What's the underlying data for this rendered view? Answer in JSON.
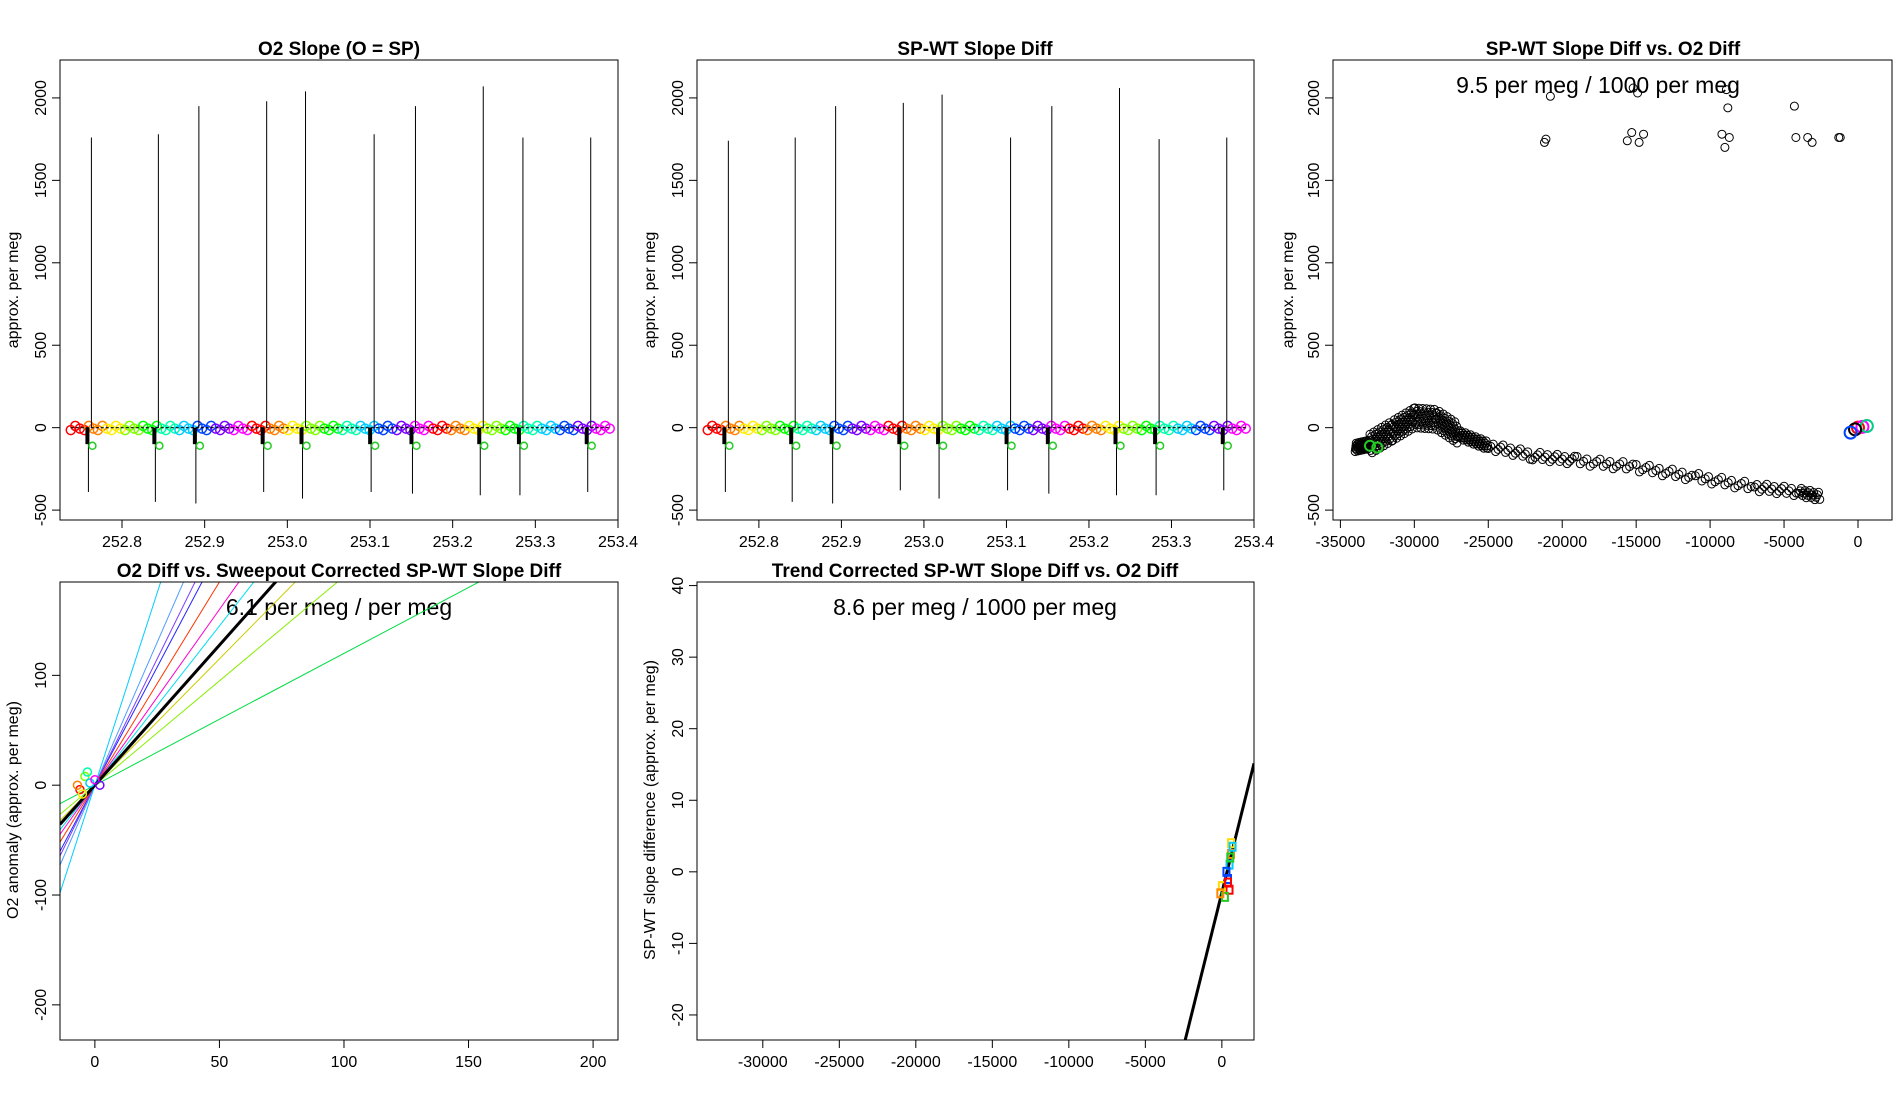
{
  "chart_data": [
    {
      "id": "p1",
      "type": "line",
      "title": "O2 Slope (O = SP)",
      "xlabel": "",
      "ylabel": "approx. per meg",
      "xlim": [
        252.725,
        253.4
      ],
      "ylim": [
        -560,
        2230
      ],
      "xticks": [
        252.8,
        252.9,
        253.0,
        253.1,
        253.2,
        253.3,
        253.4
      ],
      "xtick_labels": [
        "252.8",
        "252.9",
        "253.0",
        "253.1",
        "253.2",
        "253.3",
        "253.4"
      ],
      "yticks": [
        -500,
        0,
        500,
        1000,
        1500,
        2000
      ],
      "ytick_labels": [
        "-500",
        "0",
        "500",
        "1000",
        "1500",
        "2000"
      ],
      "x_range": [
        252.738,
        253.39
      ],
      "baseline": 0,
      "markers": "rainbow circles along baseline",
      "spikes": [
        {
          "x": 252.763,
          "peak": 1760,
          "trough": -390
        },
        {
          "x": 252.844,
          "peak": 1780,
          "trough": -450
        },
        {
          "x": 252.893,
          "peak": 1950,
          "trough": -460
        },
        {
          "x": 252.975,
          "peak": 1980,
          "trough": -390
        },
        {
          "x": 253.022,
          "peak": 2040,
          "trough": -430
        },
        {
          "x": 253.105,
          "peak": 1780,
          "trough": -390
        },
        {
          "x": 253.155,
          "peak": 1950,
          "trough": -400
        },
        {
          "x": 253.237,
          "peak": 2070,
          "trough": -410
        },
        {
          "x": 253.285,
          "peak": 1760,
          "trough": -410
        },
        {
          "x": 253.367,
          "peak": 1760,
          "trough": -390
        }
      ]
    },
    {
      "id": "p2",
      "type": "line",
      "title": "SP-WT Slope Diff",
      "xlabel": "",
      "ylabel": "approx. per meg",
      "xlim": [
        252.725,
        253.4
      ],
      "ylim": [
        -560,
        2230
      ],
      "xticks": [
        252.8,
        252.9,
        253.0,
        253.1,
        253.2,
        253.3,
        253.4
      ],
      "xtick_labels": [
        "252.8",
        "252.9",
        "253.0",
        "253.1",
        "253.2",
        "253.3",
        "253.4"
      ],
      "yticks": [
        -500,
        0,
        500,
        1000,
        1500,
        2000
      ],
      "ytick_labels": [
        "-500",
        "0",
        "500",
        "1000",
        "1500",
        "2000"
      ],
      "x_range": [
        252.738,
        253.39
      ],
      "baseline": 0,
      "markers": "rainbow circles along baseline",
      "spikes": [
        {
          "x": 252.763,
          "peak": 1740,
          "trough": -390
        },
        {
          "x": 252.844,
          "peak": 1760,
          "trough": -450
        },
        {
          "x": 252.893,
          "peak": 1950,
          "trough": -460
        },
        {
          "x": 252.975,
          "peak": 1970,
          "trough": -380
        },
        {
          "x": 253.022,
          "peak": 2020,
          "trough": -430
        },
        {
          "x": 253.105,
          "peak": 1760,
          "trough": -380
        },
        {
          "x": 253.155,
          "peak": 1950,
          "trough": -400
        },
        {
          "x": 253.237,
          "peak": 2060,
          "trough": -410
        },
        {
          "x": 253.285,
          "peak": 1750,
          "trough": -410
        },
        {
          "x": 253.367,
          "peak": 1760,
          "trough": -380
        }
      ]
    },
    {
      "id": "p3",
      "type": "scatter",
      "title": "SP-WT Slope Diff vs. O2 Diff",
      "xlabel": "",
      "ylabel": "approx. per meg",
      "annotation": "9.5 per meg / 1000 per meg",
      "xlim": [
        -35500,
        2300
      ],
      "ylim": [
        -560,
        2230
      ],
      "xticks": [
        -35000,
        -30000,
        -25000,
        -20000,
        -15000,
        -10000,
        -5000,
        0
      ],
      "xtick_labels": [
        "-35000",
        "-30000",
        "-25000",
        "-20000",
        "-15000",
        "-10000",
        "-5000",
        "0"
      ],
      "yticks": [
        -500,
        0,
        500,
        1000,
        1500,
        2000
      ],
      "ytick_labels": [
        "-500",
        "0",
        "500",
        "1000",
        "1500",
        "2000"
      ],
      "upper_points": [
        [
          -21200,
          1730
        ],
        [
          -21100,
          1750
        ],
        [
          -15600,
          1740
        ],
        [
          -15300,
          1790
        ],
        [
          -15200,
          2060
        ],
        [
          -14900,
          2030
        ],
        [
          -14800,
          1730
        ],
        [
          -14500,
          1780
        ],
        [
          -9200,
          1780
        ],
        [
          -9000,
          1700
        ],
        [
          -8900,
          2050
        ],
        [
          -8700,
          1760
        ],
        [
          -8800,
          1940
        ],
        [
          -4200,
          1760
        ],
        [
          -4300,
          1950
        ],
        [
          -3400,
          1760
        ],
        [
          -3100,
          1730
        ],
        [
          -1300,
          1760
        ],
        [
          -1200,
          1760
        ],
        [
          -20800,
          2010
        ]
      ],
      "main_curve": [
        [
          -34000,
          -120
        ],
        [
          -33000,
          -100
        ],
        [
          -31500,
          -20
        ],
        [
          -30000,
          60
        ],
        [
          -28500,
          50
        ],
        [
          -27000,
          -40
        ],
        [
          -25000,
          -110
        ],
        [
          -22000,
          -170
        ],
        [
          -19000,
          -200
        ],
        [
          -15000,
          -240
        ],
        [
          -11000,
          -300
        ],
        [
          -7000,
          -360
        ],
        [
          -4000,
          -390
        ],
        [
          -2500,
          -420
        ]
      ],
      "cluster_near_zero": [
        [
          0,
          0
        ],
        [
          300,
          5
        ],
        [
          600,
          10
        ],
        [
          -200,
          -10
        ],
        [
          -500,
          -30
        ]
      ]
    },
    {
      "id": "p4",
      "type": "line",
      "title": "O2 Diff vs. Sweepout Corrected SP-WT Slope Diff",
      "xlabel": "",
      "ylabel": "O2 anomaly (approx. per meg)",
      "annotation": "6.1 per meg / per meg",
      "xlim": [
        -14,
        210
      ],
      "ylim": [
        -232,
        185
      ],
      "xticks": [
        0,
        50,
        100,
        150,
        200
      ],
      "xtick_labels": [
        "0",
        "50",
        "100",
        "150",
        "200"
      ],
      "yticks": [
        -200,
        -100,
        0,
        100
      ],
      "ytick_labels": [
        "-200",
        "-100",
        "0",
        "100"
      ],
      "series": [
        {
          "name": "overall fit",
          "slope": 2.55,
          "intercept": 0,
          "color": "#000000"
        },
        {
          "name": "fit 1",
          "slope": 5.2,
          "intercept": 0,
          "color": "#4f9dff"
        },
        {
          "name": "fit 2",
          "slope": 4.3,
          "intercept": 0,
          "color": "#2222ff"
        },
        {
          "name": "fit 3",
          "slope": 4.6,
          "intercept": 0,
          "color": "#7a3dff"
        },
        {
          "name": "fit 4",
          "slope": 3.7,
          "intercept": 0,
          "color": "#ff3300"
        },
        {
          "name": "fit 5",
          "slope": 3.2,
          "intercept": 0,
          "color": "#ff00cc"
        },
        {
          "name": "fit 6",
          "slope": 2.9,
          "intercept": 0,
          "color": "#00ddee"
        },
        {
          "name": "fit 7",
          "slope": 2.3,
          "intercept": 0,
          "color": "#cccc00"
        },
        {
          "name": "fit 8",
          "slope": 1.9,
          "intercept": 0,
          "color": "#88ee00"
        },
        {
          "name": "fit 9",
          "slope": 1.2,
          "intercept": 0,
          "color": "#00dd44"
        },
        {
          "name": "fit 10",
          "slope": 7.0,
          "intercept": 0,
          "color": "#00ccff"
        }
      ],
      "points": [
        [
          -6,
          -4
        ],
        [
          -4,
          8
        ],
        [
          -2,
          2
        ],
        [
          0,
          5
        ],
        [
          -5,
          -8
        ],
        [
          -3,
          12
        ],
        [
          2,
          0
        ],
        [
          -7,
          0
        ]
      ]
    },
    {
      "id": "p5",
      "type": "scatter",
      "title": "Trend Corrected SP-WT Slope Diff vs. O2 Diff",
      "xlabel": "",
      "ylabel": "SP-WT slope difference (approx. per meg)",
      "annotation": "8.6 per meg / 1000 per meg",
      "xlim": [
        -34300,
        2100
      ],
      "ylim": [
        -23.5,
        40.5
      ],
      "xticks": [
        -30000,
        -25000,
        -20000,
        -15000,
        -10000,
        -5000,
        0
      ],
      "xtick_labels": [
        "-30000",
        "-25000",
        "-20000",
        "-15000",
        "-10000",
        "-5000",
        "0"
      ],
      "yticks": [
        -20,
        -10,
        0,
        10,
        20,
        30,
        40
      ],
      "ytick_labels": [
        "-20",
        "-10",
        "0",
        "10",
        "20",
        "30",
        "40"
      ],
      "fit_line": {
        "slope": 0.0086,
        "intercept": -2.9
      },
      "points": [
        [
          600,
          4
        ],
        [
          600,
          2.5
        ],
        [
          500,
          1
        ],
        [
          400,
          -1
        ],
        [
          500,
          -2.5
        ],
        [
          200,
          -3.5
        ],
        [
          0,
          -2
        ],
        [
          -100,
          -3
        ],
        [
          700,
          3.5
        ],
        [
          300,
          0
        ],
        [
          400,
          -1.5
        ],
        [
          550,
          2
        ]
      ]
    }
  ]
}
